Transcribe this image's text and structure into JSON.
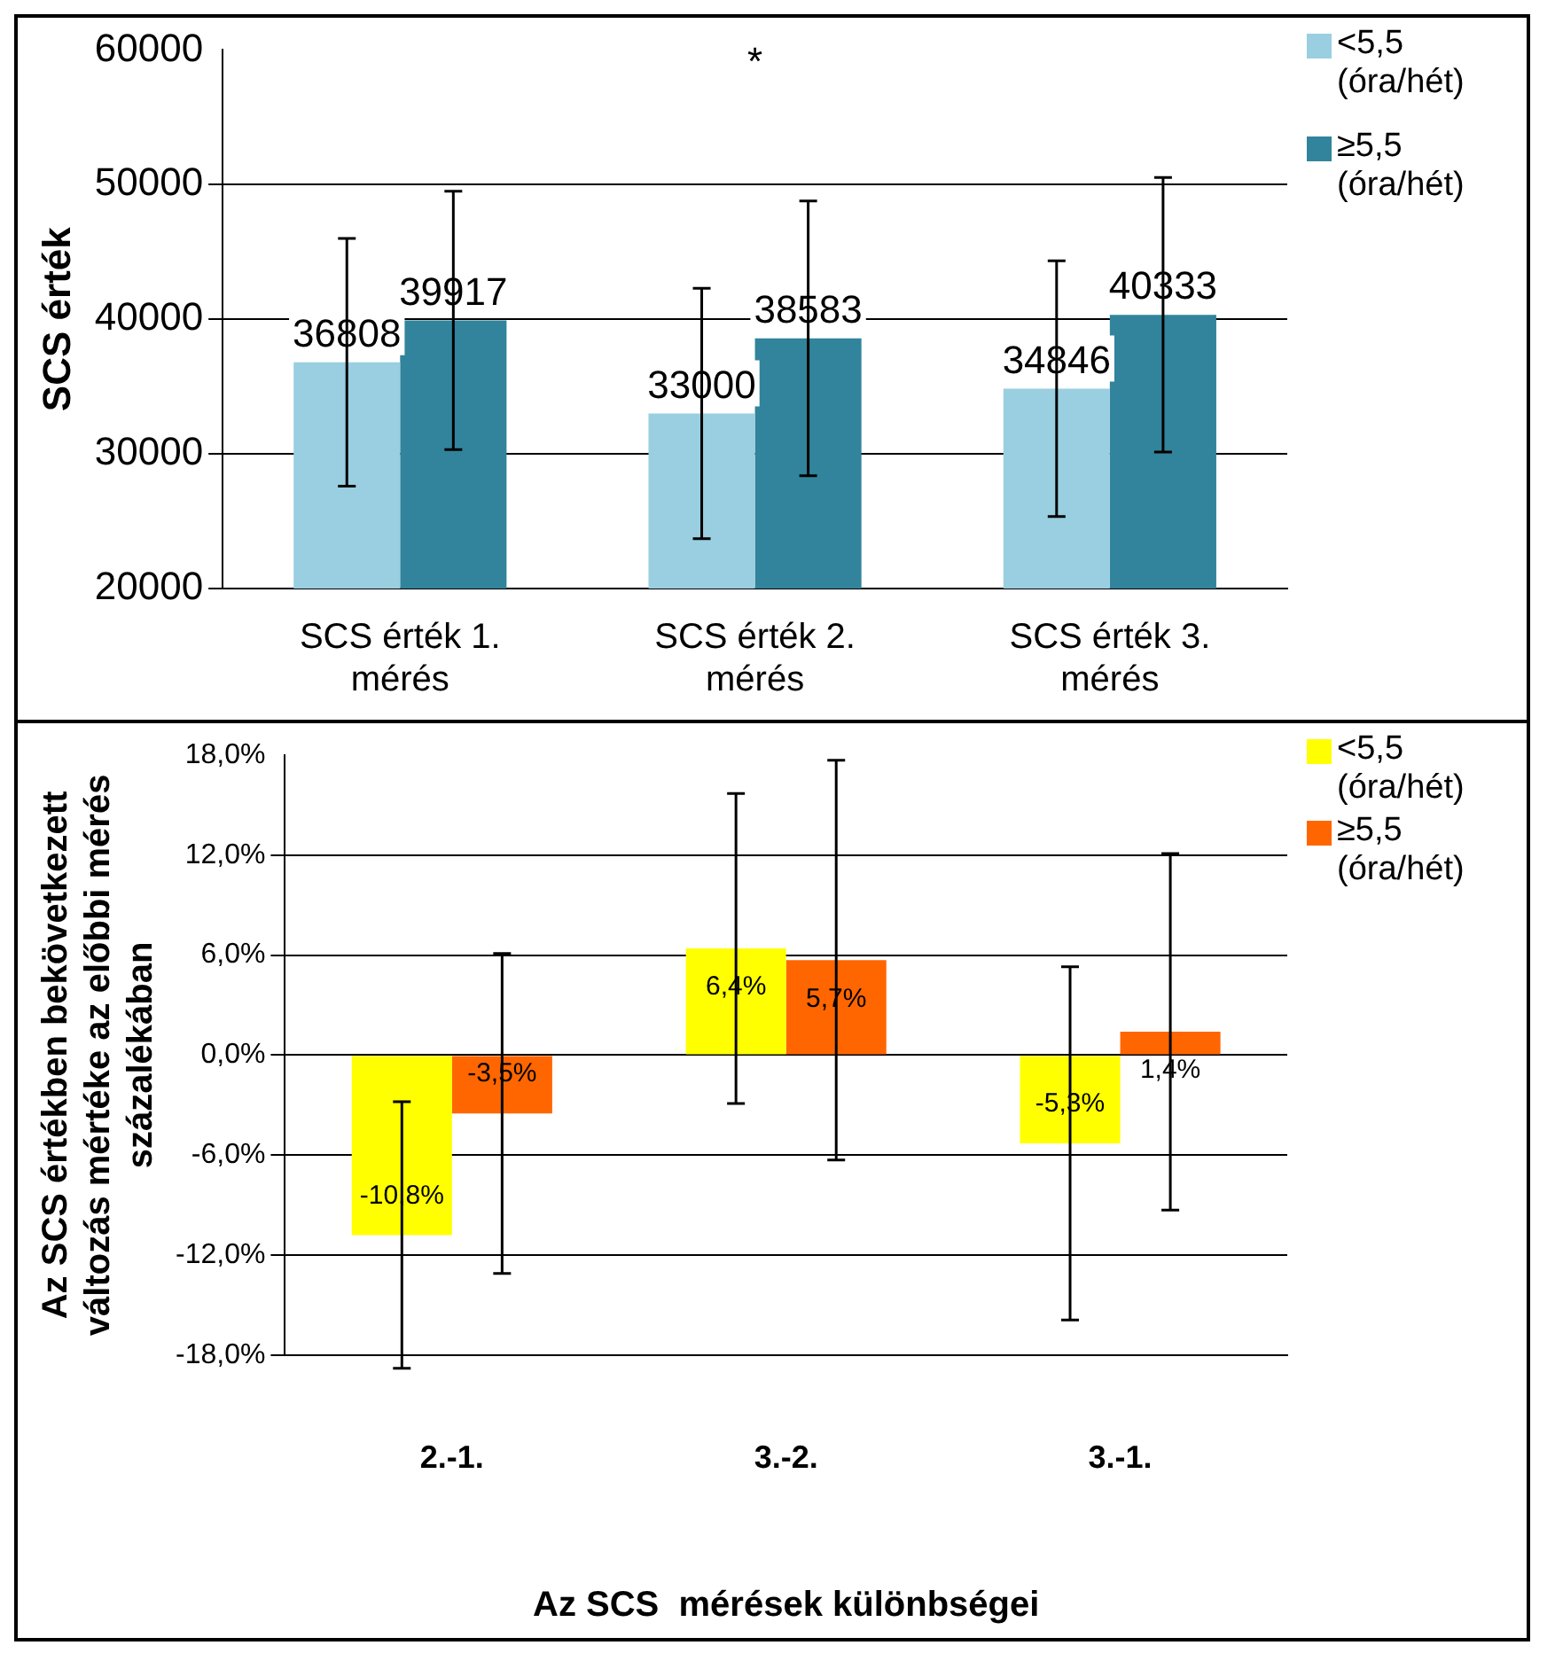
{
  "chart_data": [
    {
      "type": "bar",
      "ylabel": "SCS érték",
      "categories": [
        "SCS érték 1. mérés",
        "SCS érték 2. mérés",
        "SCS érték 3. mérés"
      ],
      "series": [
        {
          "name": "<5,5 (óra/hét)",
          "color": "#99cfe0",
          "values": [
            36808,
            33000,
            34846
          ],
          "errors": [
            9200,
            9300,
            9500
          ]
        },
        {
          "name": "≥5,5 (óra/hét)",
          "color": "#31849b",
          "values": [
            39917,
            38583,
            40333
          ],
          "errors": [
            9600,
            10200,
            10200
          ]
        }
      ],
      "ylim": [
        20000,
        60000
      ],
      "yticks": [
        20000,
        30000,
        40000,
        50000,
        60000
      ],
      "grid": "y",
      "legend": "top right",
      "data_labels": true,
      "annotations": [
        "*"
      ]
    },
    {
      "type": "bar",
      "xlabel": "Az SCS  mérések különbségei",
      "ylabel": "Az SCS értékben bekövetkezett változás mértéke az előbbi mérés százalékában",
      "categories": [
        "2.-1.",
        "3.-2.",
        "3.-1."
      ],
      "series": [
        {
          "name": "<5,5 (óra/hét)",
          "color": "#ffff00",
          "values": [
            -10.8,
            6.4,
            -5.3
          ],
          "errors": [
            8,
            9.3,
            10.6
          ],
          "value_labels": [
            "-10,8%",
            "6,4%",
            "-5,3%"
          ]
        },
        {
          "name": "≥5,5 (óra/hét)",
          "color": "#ff6600",
          "values": [
            -3.5,
            5.7,
            1.4
          ],
          "errors": [
            9.6,
            12,
            10.7
          ],
          "value_labels": [
            "-3,5%",
            "5,7%",
            "1,4%"
          ]
        }
      ],
      "ylim": [
        -18,
        18
      ],
      "yticks": [
        {
          "value": -18,
          "label": "-18,0%"
        },
        {
          "value": -12,
          "label": "-12,0%"
        },
        {
          "value": -6,
          "label": "-6,0%"
        },
        {
          "value": 0,
          "label": "0,0%"
        },
        {
          "value": 6,
          "label": "6,0%"
        },
        {
          "value": 12,
          "label": "12,0%"
        },
        {
          "value": 18,
          "label": "18,0%"
        }
      ],
      "grid": "y",
      "legend": "top right"
    }
  ]
}
